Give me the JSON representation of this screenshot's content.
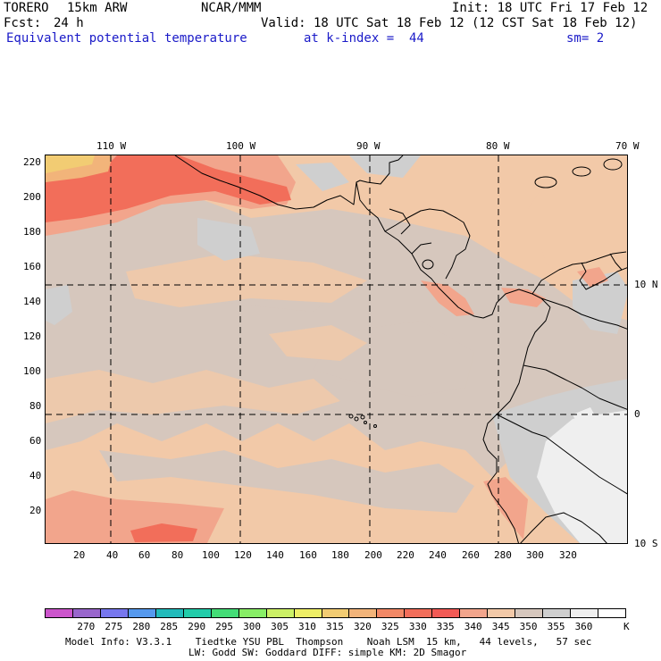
{
  "header": {
    "model": "TORERO",
    "resolution": "15km ARW",
    "org": "NCAR/MMM",
    "init": "Init: 18 UTC Fri 17 Feb 12",
    "fcst_label": "Fcst:",
    "fcst_value": "24 h",
    "valid": "Valid: 18 UTC Sat 18 Feb 12 (12 CST Sat 18 Feb 12)",
    "field": "Equivalent potential temperature",
    "level": "at k-index =  44",
    "smooth": "sm= 2"
  },
  "map": {
    "top_longitudes": [
      "110 W",
      "100 W",
      "90 W",
      "80 W",
      "70 W"
    ],
    "right_latitudes": [
      "10 N",
      "0",
      "10 S"
    ],
    "y_ticks": [
      "220",
      "200",
      "180",
      "160",
      "140",
      "120",
      "100",
      "80",
      "60",
      "40",
      "20"
    ],
    "x_ticks": [
      "20",
      "40",
      "60",
      "80",
      "100",
      "120",
      "140",
      "160",
      "180",
      "200",
      "220",
      "240",
      "260",
      "280",
      "300",
      "320"
    ],
    "colors": {
      "c340": "#f2c9a8",
      "c345": "#d6c7bd",
      "c350": "#cfcfcf",
      "c355": "#efefef",
      "c335": "#f2a58c",
      "c330": "#f26e5a",
      "c325": "#f2b47a",
      "c320": "#f2cc73"
    }
  },
  "colorbar": {
    "colors": [
      "#cc55cc",
      "#9966cc",
      "#7777ee",
      "#5599ee",
      "#22bbbb",
      "#22ccaa",
      "#44dd77",
      "#88ee66",
      "#ccf066",
      "#eeee66",
      "#f2cc73",
      "#f2b47a",
      "#f28866",
      "#f26e5a",
      "#f25a55",
      "#f2a58c",
      "#f2c9a8",
      "#d6c7bd",
      "#cfcfcf",
      "#efefef",
      "#ffffff"
    ],
    "labels": [
      "270",
      "275",
      "280",
      "285",
      "290",
      "295",
      "300",
      "305",
      "310",
      "315",
      "320",
      "325",
      "330",
      "335",
      "340",
      "345",
      "350",
      "355",
      "360"
    ],
    "unit": "K"
  },
  "footer": {
    "line1": "Model Info: V3.3.1    Tiedtke YSU PBL  Thompson    Noah LSM  15 km,   44 levels,   57 sec",
    "line2": "LW: Godd SW: Goddard DIFF: simple KM: 2D Smagor"
  }
}
